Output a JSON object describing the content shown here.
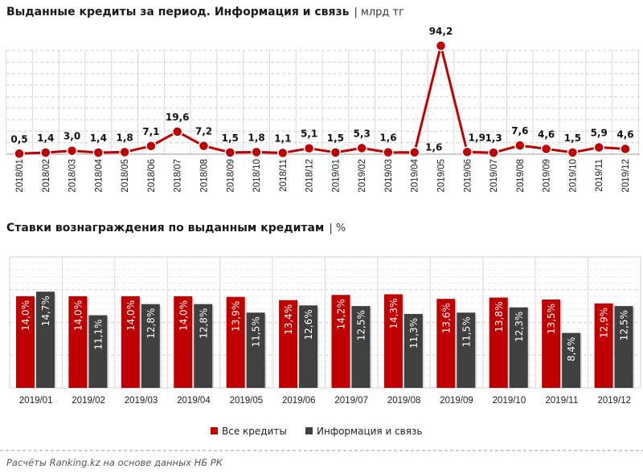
{
  "chart_data": [
    {
      "type": "line",
      "title": "Выданные кредиты за период. Информация и связь",
      "unit": "| млрд тг",
      "categories": [
        "2018/01",
        "2018/02",
        "2018/03",
        "2018/04",
        "2018/05",
        "2018/06",
        "2018/07",
        "2018/08",
        "2018/09",
        "2018/10",
        "2018/11",
        "2018/12",
        "2019/01",
        "2019/02",
        "2019/03",
        "2019/04",
        "2019/05",
        "2019/06",
        "2019/07",
        "2019/08",
        "2019/09",
        "2019/10",
        "2019/11",
        "2019/12"
      ],
      "values": [
        0.5,
        1.4,
        3.0,
        1.4,
        1.8,
        7.1,
        19.6,
        7.2,
        1.5,
        1.8,
        1.1,
        5.1,
        1.5,
        5.3,
        1.6,
        1.6,
        94.2,
        1.9,
        1.3,
        7.6,
        4.6,
        1.5,
        5.9,
        4.6
      ],
      "labels": [
        "0,5",
        "1,4",
        "3,0",
        "1,4",
        "1,8",
        "7,1",
        "19,6",
        "7,2",
        "1,5",
        "1,8",
        "1,1",
        "5,1",
        "1,5",
        "5,3",
        "1,6",
        "1,6",
        "94,2",
        "1,9",
        "1,3",
        "7,6",
        "4,6",
        "1,5",
        "5,9",
        "4,6"
      ],
      "ylim": [
        0,
        100
      ],
      "grid": true,
      "color": "#c00000"
    },
    {
      "type": "bar",
      "title": "Ставки вознаграждения по выданным кредитам",
      "unit": "| %",
      "categories": [
        "2019/01",
        "2019/02",
        "2019/03",
        "2019/04",
        "2019/05",
        "2019/06",
        "2019/07",
        "2019/08",
        "2019/09",
        "2019/10",
        "2019/11",
        "2019/12"
      ],
      "series": [
        {
          "name": "Все кредиты",
          "color": "#c00000",
          "values": [
            14.0,
            14.0,
            14.0,
            14.0,
            13.9,
            13.4,
            14.2,
            14.3,
            13.6,
            13.8,
            13.5,
            12.9
          ],
          "labels": [
            "14,0%",
            "14,0%",
            "14,0%",
            "14,0%",
            "13,9%",
            "13,4%",
            "14,2%",
            "14,3%",
            "13,6%",
            "13,8%",
            "13,5%",
            "12,9%"
          ]
        },
        {
          "name": "Информация и связь",
          "color": "#404040",
          "values": [
            14.7,
            11.1,
            12.8,
            12.8,
            11.5,
            12.6,
            12.5,
            11.3,
            11.5,
            12.3,
            8.4,
            12.5
          ],
          "labels": [
            "14,7%",
            "11,1%",
            "12,8%",
            "12,8%",
            "11,5%",
            "12,6%",
            "12,5%",
            "11,3%",
            "11,5%",
            "12,3%",
            "8,4%",
            "12,5%"
          ]
        }
      ],
      "ylim": [
        0,
        20
      ],
      "grid": true,
      "legend": "bottom"
    }
  ],
  "footer": "Расчёты Ranking.kz на основе данных НБ РК"
}
